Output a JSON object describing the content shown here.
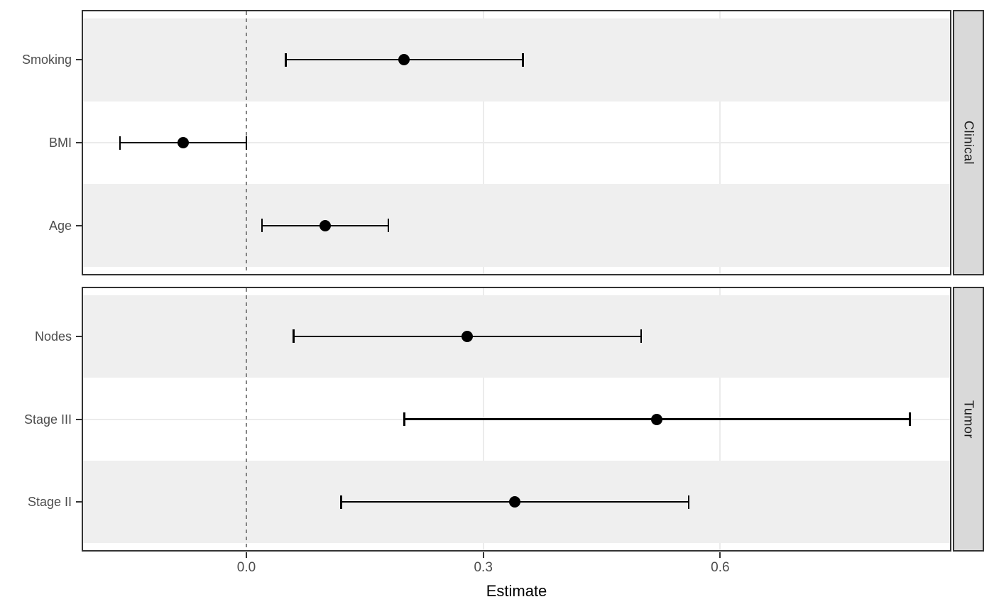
{
  "chart_data": {
    "type": "scatter",
    "subtype": "forest-plot-pointrange",
    "title": "",
    "xlabel": "Estimate",
    "ylabel": "",
    "x_ticks": [
      0.0,
      0.3,
      0.6
    ],
    "x_tick_labels": [
      "0.0",
      "0.3",
      "0.6"
    ],
    "xlim": [
      -0.209,
      0.893
    ],
    "reference_line_x": 0,
    "grid": "major gridlines only, light grey; alternating grey row stripes",
    "legend": "none",
    "facets": [
      {
        "label": "Clinical",
        "rows": [
          {
            "label": "Smoking",
            "estimate": 0.2,
            "ci_low": 0.05,
            "ci_high": 0.35
          },
          {
            "label": "BMI",
            "estimate": -0.08,
            "ci_low": -0.16,
            "ci_high": 0.0
          },
          {
            "label": "Age",
            "estimate": 0.1,
            "ci_low": 0.02,
            "ci_high": 0.18
          }
        ]
      },
      {
        "label": "Tumor",
        "rows": [
          {
            "label": "Nodes",
            "estimate": 0.28,
            "ci_low": 0.06,
            "ci_high": 0.5
          },
          {
            "label": "Stage III",
            "estimate": 0.52,
            "ci_low": 0.2,
            "ci_high": 0.84
          },
          {
            "label": "Stage II",
            "estimate": 0.34,
            "ci_low": 0.12,
            "ci_high": 0.56
          }
        ]
      }
    ],
    "colors": {
      "point": "#000000",
      "error_bar": "#000000",
      "reference_line": "#848484",
      "stripe_fill": "#efefef",
      "gridline": "#ebebeb",
      "panel_border": "#333333",
      "strip_background": "#d9d9d9",
      "strip_text": "#1a1a1a",
      "axis_text": "#4d4d4d",
      "axis_title": "#000000"
    }
  }
}
